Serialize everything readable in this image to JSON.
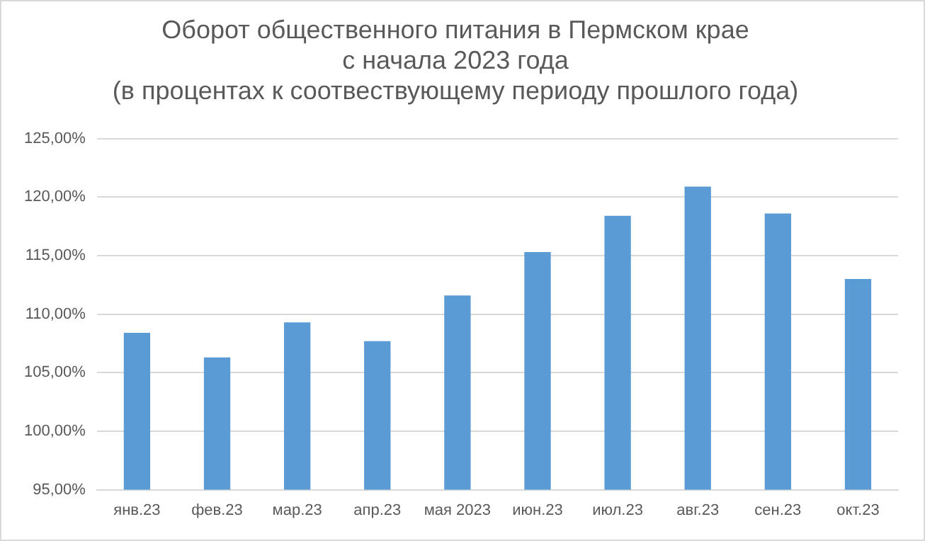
{
  "chart_data": {
    "type": "bar",
    "title": [
      "Оборот общественного питания в Пермском крае",
      "с начала 2023 года",
      "(в процентах к соотвествующему периоду прошлого года)"
    ],
    "categories": [
      "янв.23",
      "фев.23",
      "мар.23",
      "апр.23",
      "мая 2023",
      "июн.23",
      "июл.23",
      "авг.23",
      "сен.23",
      "окт.23"
    ],
    "values": [
      108.4,
      106.3,
      109.3,
      107.7,
      111.6,
      115.3,
      118.4,
      120.9,
      118.6,
      113.0
    ],
    "color": "#5b9bd5",
    "ylim": [
      95,
      125
    ],
    "yticks": [
      {
        "value": 95,
        "label": "95,00%"
      },
      {
        "value": 100,
        "label": "100,00%"
      },
      {
        "value": 105,
        "label": "105,00%"
      },
      {
        "value": 110,
        "label": "110,00%"
      },
      {
        "value": 115,
        "label": "115,00%"
      },
      {
        "value": 120,
        "label": "120,00%"
      },
      {
        "value": 125,
        "label": "125,00%"
      }
    ],
    "grid": "y"
  }
}
